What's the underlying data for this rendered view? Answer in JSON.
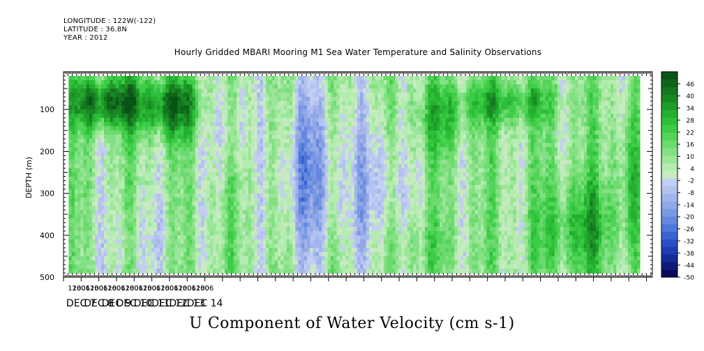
{
  "header": {
    "longitude": "LONGITUDE : 122W(-122)",
    "latitude": "LATITUDE : 36.8N",
    "year": "YEAR : 2012"
  },
  "chart_data": {
    "type": "heatmap",
    "title": "Hourly Gridded MBARI Mooring M1 Sea Water Temperature and Salinity Observations",
    "main_title": "U Component of Water Velocity (cm s-1)",
    "ylabel": "DEPTH (m)",
    "ylim": [
      500,
      10
    ],
    "y_reversed": true,
    "yticks": [
      100,
      200,
      300,
      400,
      500
    ],
    "x_hours_range": [
      0,
      800
    ],
    "x_hour_ticks": [
      "12",
      "18",
      "00",
      "06",
      "12",
      "18",
      "00",
      "06",
      "12",
      "18",
      "00",
      "06",
      "12",
      "18",
      "00",
      "06",
      "12",
      "18",
      "00",
      "06",
      "12",
      "18",
      "00",
      "06",
      "12",
      "18",
      "00",
      "06",
      "12",
      "18",
      "00",
      "06"
    ],
    "x_day_labels": [
      "DEC  7",
      "DEC  8",
      "DEC  9",
      "DEC 10",
      "DEC 11",
      "DEC 12",
      "DEC 13",
      "DEC 14"
    ],
    "data_hour_range": [
      7,
      783
    ],
    "data_depth_range": [
      20,
      490
    ],
    "colorbar": {
      "labels": [
        "46",
        "40",
        "34",
        "28",
        "22",
        "16",
        "10",
        "4",
        "-2",
        "-8",
        "-14",
        "-20",
        "-26",
        "-32",
        "-38",
        "-44",
        "-50"
      ],
      "range": [
        -50,
        52
      ],
      "step": 3,
      "colors": [
        "#0a0a5a",
        "#0f1a78",
        "#142a95",
        "#1f3bb0",
        "#2a4ec4",
        "#3a63d0",
        "#4f78d8",
        "#6688de",
        "#7b98e3",
        "#90a8e8",
        "#a2b5eb",
        "#b3c2ef",
        "#c3cef2",
        "#c8eac2",
        "#b4ecb0",
        "#9ce69a",
        "#84e084",
        "#6cdb6e",
        "#53d458",
        "#3dcc46",
        "#2dbf39",
        "#25ae30",
        "#1f9b2a",
        "#198824",
        "#14761f",
        "#0f641a",
        "#0a5316"
      ]
    },
    "field_patterns": [
      {
        "hour": 60,
        "depth": 80,
        "value": 30,
        "sigma_h": 60,
        "sigma_d": 60
      },
      {
        "hour": 150,
        "depth": 90,
        "value": 24,
        "sigma_h": 40,
        "sigma_d": 70
      },
      {
        "hour": 220,
        "depth": 120,
        "value": -10,
        "sigma_h": 30,
        "sigma_d": 120
      },
      {
        "hour": 330,
        "depth": 250,
        "value": -20,
        "sigma_h": 40,
        "sigma_d": 220
      },
      {
        "hour": 420,
        "depth": 300,
        "value": -14,
        "sigma_h": 40,
        "sigma_d": 220
      },
      {
        "hour": 510,
        "depth": 120,
        "value": 12,
        "sigma_h": 40,
        "sigma_d": 80
      },
      {
        "hour": 600,
        "depth": 80,
        "value": 16,
        "sigma_h": 70,
        "sigma_d": 50
      },
      {
        "hour": 700,
        "depth": 380,
        "value": 16,
        "sigma_h": 55,
        "sigma_d": 120
      },
      {
        "hour": 770,
        "depth": 250,
        "value": 10,
        "sigma_h": 25,
        "sigma_d": 150
      },
      {
        "hour": 100,
        "depth": 420,
        "value": -6,
        "sigma_h": 50,
        "sigma_d": 120
      },
      {
        "hour": 470,
        "depth": 420,
        "value": 6,
        "sigma_h": 60,
        "sigma_d": 80
      }
    ]
  }
}
